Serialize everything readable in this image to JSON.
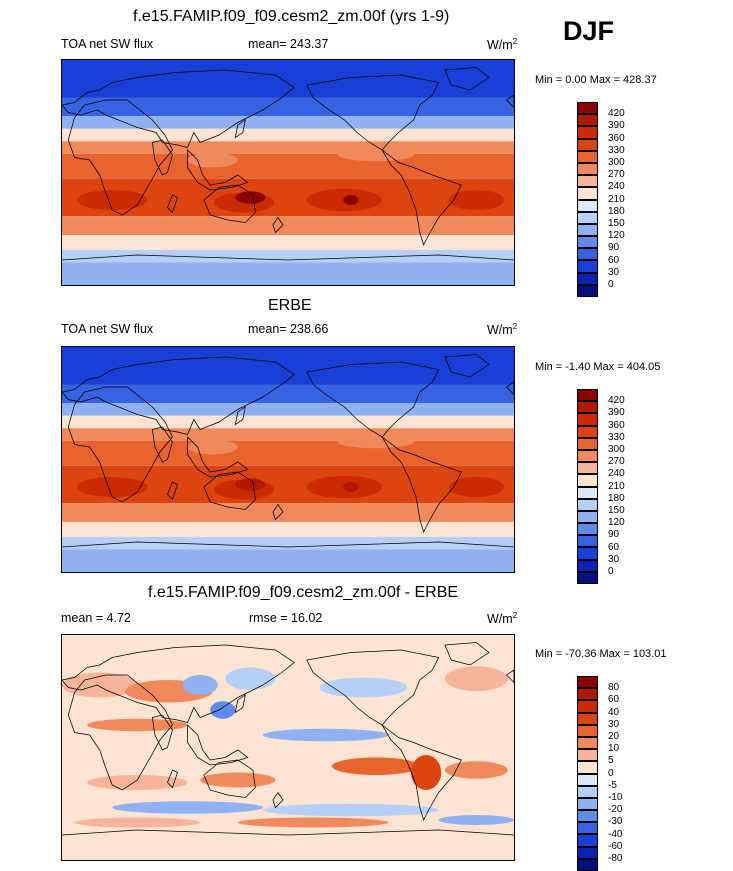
{
  "panels": [
    {
      "title": "f.e15.FAMIP.f09_f09.cesm2_zm.00f (yrs 1-9)",
      "left_label": "TOA net SW flux",
      "center_label": "mean= 243.37",
      "units": "W/m",
      "units_sup": "2",
      "minmax": "Min =   0.00 Max = 428.37",
      "kind": "abs"
    },
    {
      "title": "ERBE",
      "left_label": "TOA net SW flux",
      "center_label": "mean= 238.66",
      "units": "W/m",
      "units_sup": "2",
      "minmax": "Min =  -1.40 Max = 404.05",
      "kind": "abs"
    },
    {
      "title": "f.e15.FAMIP.f09_f09.cesm2_zm.00f - ERBE",
      "left_label": "mean =   4.72",
      "center_label": "rmse =  16.02",
      "units": "W/m",
      "units_sup": "2",
      "minmax": "Min = -70.36 Max = 103.01",
      "kind": "diff"
    }
  ],
  "season": "DJF",
  "colorbars": {
    "abs": {
      "labels": [
        "420",
        "390",
        "360",
        "330",
        "300",
        "270",
        "240",
        "210",
        "180",
        "150",
        "120",
        "90",
        "60",
        "30",
        "0"
      ],
      "colors": [
        "#8b0000",
        "#b01800",
        "#cc2a00",
        "#dd4510",
        "#e8632e",
        "#f08a5c",
        "#f6b59a",
        "#fde4d2",
        "#dde9fb",
        "#b5cff7",
        "#8fb1f2",
        "#5f8be9",
        "#3762e0",
        "#1a3fd6",
        "#0c22b5",
        "#05107a"
      ]
    },
    "diff": {
      "labels": [
        "80",
        "60",
        "40",
        "30",
        "20",
        "10",
        "5",
        "0",
        "-5",
        "-10",
        "-20",
        "-30",
        "-40",
        "-60",
        "-80"
      ],
      "colors": [
        "#8b0000",
        "#b01800",
        "#cc2a00",
        "#dd4510",
        "#e8632e",
        "#f08a5c",
        "#f6b59a",
        "#fde4d2",
        "#dde9fb",
        "#b5cff7",
        "#8fb1f2",
        "#5f8be9",
        "#3762e0",
        "#1a3fd6",
        "#0c22b5",
        "#05107a"
      ]
    }
  },
  "map_fill": {
    "abs_bands": [
      {
        "lat_top": 90,
        "lat_bottom": 60,
        "color": "#1a3fd6"
      },
      {
        "lat_top": 60,
        "lat_bottom": 45,
        "color": "#3762e0"
      },
      {
        "lat_top": 45,
        "lat_bottom": 35,
        "color": "#8fb1f2"
      },
      {
        "lat_top": 35,
        "lat_bottom": 25,
        "color": "#fde4d2"
      },
      {
        "lat_top": 25,
        "lat_bottom": 15,
        "color": "#f08a5c"
      },
      {
        "lat_top": 15,
        "lat_bottom": -5,
        "color": "#e8632e"
      },
      {
        "lat_top": -5,
        "lat_bottom": -35,
        "color": "#dd4510"
      },
      {
        "lat_top": -35,
        "lat_bottom": -50,
        "color": "#f08a5c"
      },
      {
        "lat_top": -50,
        "lat_bottom": -62,
        "color": "#fde4d2"
      },
      {
        "lat_top": -62,
        "lat_bottom": -72,
        "color": "#b5cff7"
      },
      {
        "lat_top": -72,
        "lat_bottom": -90,
        "color": "#8fb1f2"
      }
    ],
    "diff_base": "#fde4d2"
  }
}
